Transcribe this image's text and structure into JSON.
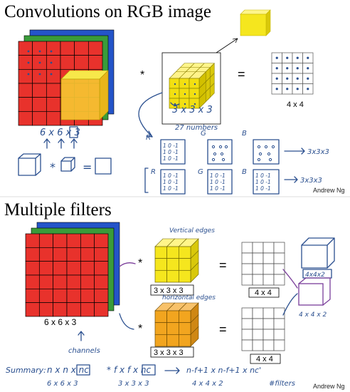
{
  "top": {
    "title": "Convolutions on RGB image",
    "credit": "Andrew Ng",
    "input_dims": "6 x 6 x 3",
    "filter_dims": "3 x 3 x 3",
    "filter_count": "27 numbers",
    "output_dims": "4 x 4",
    "op_star": "*",
    "op_equals": "=",
    "channel_letters": [
      "R",
      "G",
      "B"
    ],
    "kernel_rows_a": [
      "1 0 -1",
      "1 0 -1",
      "1 0 -1"
    ],
    "kernel_rows_b": [
      "1 0 -1",
      "1 0 -1",
      "1 0 -1"
    ],
    "arrow_note_1": "3x3x3",
    "arrow_note_2": "3x3x3"
  },
  "bottom": {
    "title": "Multiple filters",
    "credit": "Andrew Ng",
    "input_dims": "6 x 6 x 3",
    "channels_note": "channels",
    "filter1_dims": "3 x 3 x 3",
    "filter2_dims": "3 x 3 x 3",
    "filter1_note": "Vertical edges",
    "filter2_note": "horizontal edges",
    "output1_dims": "4 x 4",
    "output2_dims": "4 x 4",
    "stack_dims": "4 x 4 x 2",
    "stack_dims_b": "4x4x2",
    "op_star": "*",
    "op_equals": "=",
    "summary_label": "Summary:",
    "summary_input": "n x n x nc",
    "summary_input_eg": "6 x 6 x 3",
    "summary_filter": "f x f x nc",
    "summary_filter_eg": "3 x 3 x 3",
    "summary_output": "n-f+1 x n-f+1 x nc'",
    "summary_output_eg": "4 x 4 x 2",
    "summary_filters_note": "#filters"
  },
  "colors": {
    "red": "#e8322c",
    "green": "#3a9c3a",
    "blue": "#2454c9",
    "yellow": "#f5e61e",
    "orange": "#f2a51f",
    "ink": "#2a4f8f",
    "purple": "#7a3d9a"
  }
}
